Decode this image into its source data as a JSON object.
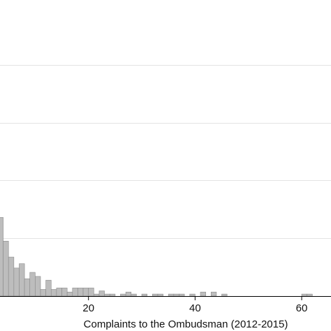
{
  "chart_data": {
    "type": "bar",
    "xlabel": "Complaints to the Ombudsman (2012-2015)",
    "ylabel": "",
    "title": "",
    "x_ticks": [
      20,
      40,
      60
    ],
    "xlim": [
      3.4,
      65.5
    ],
    "ylim": [
      0,
      1000
    ],
    "y_grid": [
      200,
      400,
      600,
      800
    ],
    "grid": true,
    "bin_width": 1,
    "bins": [
      {
        "x": 3,
        "v": 272
      },
      {
        "x": 4,
        "v": 190
      },
      {
        "x": 5,
        "v": 135
      },
      {
        "x": 6,
        "v": 97
      },
      {
        "x": 7,
        "v": 112
      },
      {
        "x": 8,
        "v": 60
      },
      {
        "x": 9,
        "v": 82
      },
      {
        "x": 10,
        "v": 68
      },
      {
        "x": 11,
        "v": 23
      },
      {
        "x": 12,
        "v": 55
      },
      {
        "x": 13,
        "v": 23
      },
      {
        "x": 14,
        "v": 28
      },
      {
        "x": 15,
        "v": 28
      },
      {
        "x": 16,
        "v": 14
      },
      {
        "x": 17,
        "v": 28
      },
      {
        "x": 18,
        "v": 28
      },
      {
        "x": 19,
        "v": 28
      },
      {
        "x": 20,
        "v": 28
      },
      {
        "x": 21,
        "v": 7
      },
      {
        "x": 22,
        "v": 18
      },
      {
        "x": 23,
        "v": 7
      },
      {
        "x": 24,
        "v": 7
      },
      {
        "x": 26,
        "v": 7
      },
      {
        "x": 27,
        "v": 14
      },
      {
        "x": 28,
        "v": 7
      },
      {
        "x": 30,
        "v": 7
      },
      {
        "x": 32,
        "v": 7
      },
      {
        "x": 33,
        "v": 7
      },
      {
        "x": 35,
        "v": 7
      },
      {
        "x": 36,
        "v": 7
      },
      {
        "x": 37,
        "v": 7
      },
      {
        "x": 39,
        "v": 7
      },
      {
        "x": 41,
        "v": 14
      },
      {
        "x": 43,
        "v": 14
      },
      {
        "x": 45,
        "v": 7
      },
      {
        "x": 60,
        "v": 7
      },
      {
        "x": 61,
        "v": 7
      }
    ]
  }
}
